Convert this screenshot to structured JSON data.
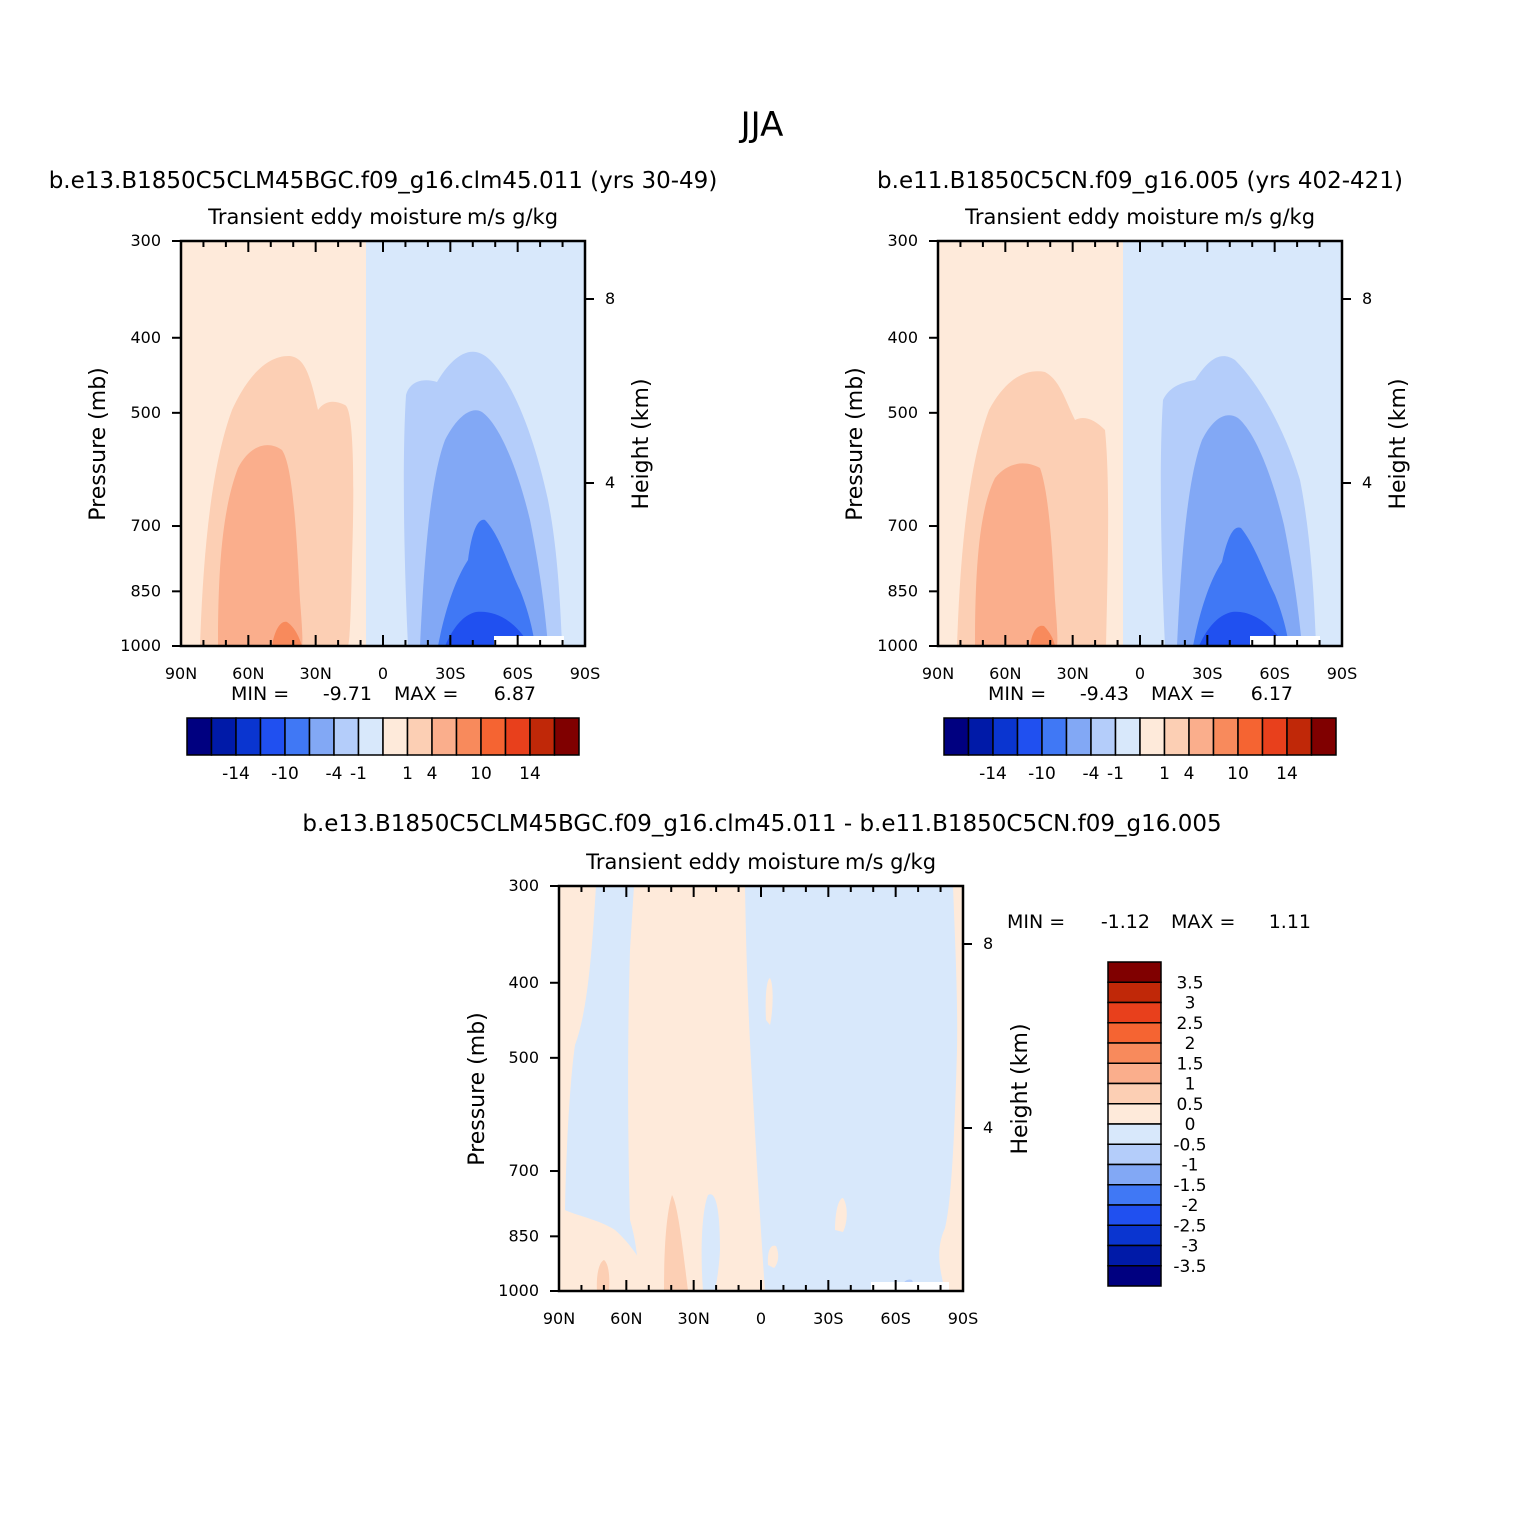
{
  "figure": {
    "title": "JJA"
  },
  "colors": {
    "neg_deep": "#000080",
    "neg_1": "#001aa8",
    "neg_2": "#0a35d0",
    "neg_3": "#2050f0",
    "neg_4": "#4078f5",
    "neg_5": "#82a8f5",
    "neg_6": "#b4cdfa",
    "neg_7": "#d8e8fb",
    "pos_7": "#feeada",
    "pos_6": "#fccfb4",
    "pos_5": "#faae8c",
    "pos_4": "#f88a5c",
    "pos_3": "#f56432",
    "pos_2": "#e8401c",
    "pos_1": "#c02808",
    "pos_deep": "#800000"
  },
  "chart_data": [
    {
      "type": "heatmap",
      "title": "b.e13.B1850C5CLM45BGC.f09_g16.clm45.011 (yrs 30-49)",
      "subtitle_left": "Transient eddy moisture",
      "subtitle_right": "m/s g/kg",
      "ylabel": "Pressure (mb)",
      "ylabel_right": "Height (km)",
      "x_ticks": [
        "90N",
        "60N",
        "30N",
        "0",
        "30S",
        "60S",
        "90S"
      ],
      "y_ticks": [
        "300",
        "400",
        "500",
        "700",
        "850",
        "1000"
      ],
      "y_right_ticks": [
        "8",
        "4"
      ],
      "min_label": "MIN =",
      "min_value": "-9.71",
      "max_label": "MAX =",
      "max_value": "6.87",
      "colorbar_labels": [
        "-14",
        "-10",
        "-4",
        "-1",
        "1",
        "4",
        "10",
        "14"
      ]
    },
    {
      "type": "heatmap",
      "title": "b.e11.B1850C5CN.f09_g16.005 (yrs 402-421)",
      "subtitle_left": "Transient eddy moisture",
      "subtitle_right": "m/s g/kg",
      "ylabel": "Pressure (mb)",
      "ylabel_right": "Height (km)",
      "x_ticks": [
        "90N",
        "60N",
        "30N",
        "0",
        "30S",
        "60S",
        "90S"
      ],
      "y_ticks": [
        "300",
        "400",
        "500",
        "700",
        "850",
        "1000"
      ],
      "y_right_ticks": [
        "8",
        "4"
      ],
      "min_label": "MIN =",
      "min_value": "-9.43",
      "max_label": "MAX =",
      "max_value": "6.17",
      "colorbar_labels": [
        "-14",
        "-10",
        "-4",
        "-1",
        "1",
        "4",
        "10",
        "14"
      ]
    },
    {
      "type": "heatmap",
      "title": "b.e13.B1850C5CLM45BGC.f09_g16.clm45.011 - b.e11.B1850C5CN.f09_g16.005",
      "subtitle_left": "Transient eddy moisture",
      "subtitle_right": "m/s g/kg",
      "ylabel": "Pressure (mb)",
      "ylabel_right": "Height (km)",
      "x_ticks": [
        "90N",
        "60N",
        "30N",
        "0",
        "30S",
        "60S",
        "90S"
      ],
      "y_ticks": [
        "300",
        "400",
        "500",
        "700",
        "850",
        "1000"
      ],
      "y_right_ticks": [
        "8",
        "4"
      ],
      "min_label": "MIN =",
      "min_value": "-1.12",
      "max_label": "MAX =",
      "max_value": "1.11",
      "colorbar_labels": [
        "3.5",
        "3",
        "2.5",
        "2",
        "1.5",
        "1",
        "0.5",
        "0",
        "-0.5",
        "-1",
        "-1.5",
        "-2",
        "-2.5",
        "-3",
        "-3.5"
      ]
    }
  ]
}
